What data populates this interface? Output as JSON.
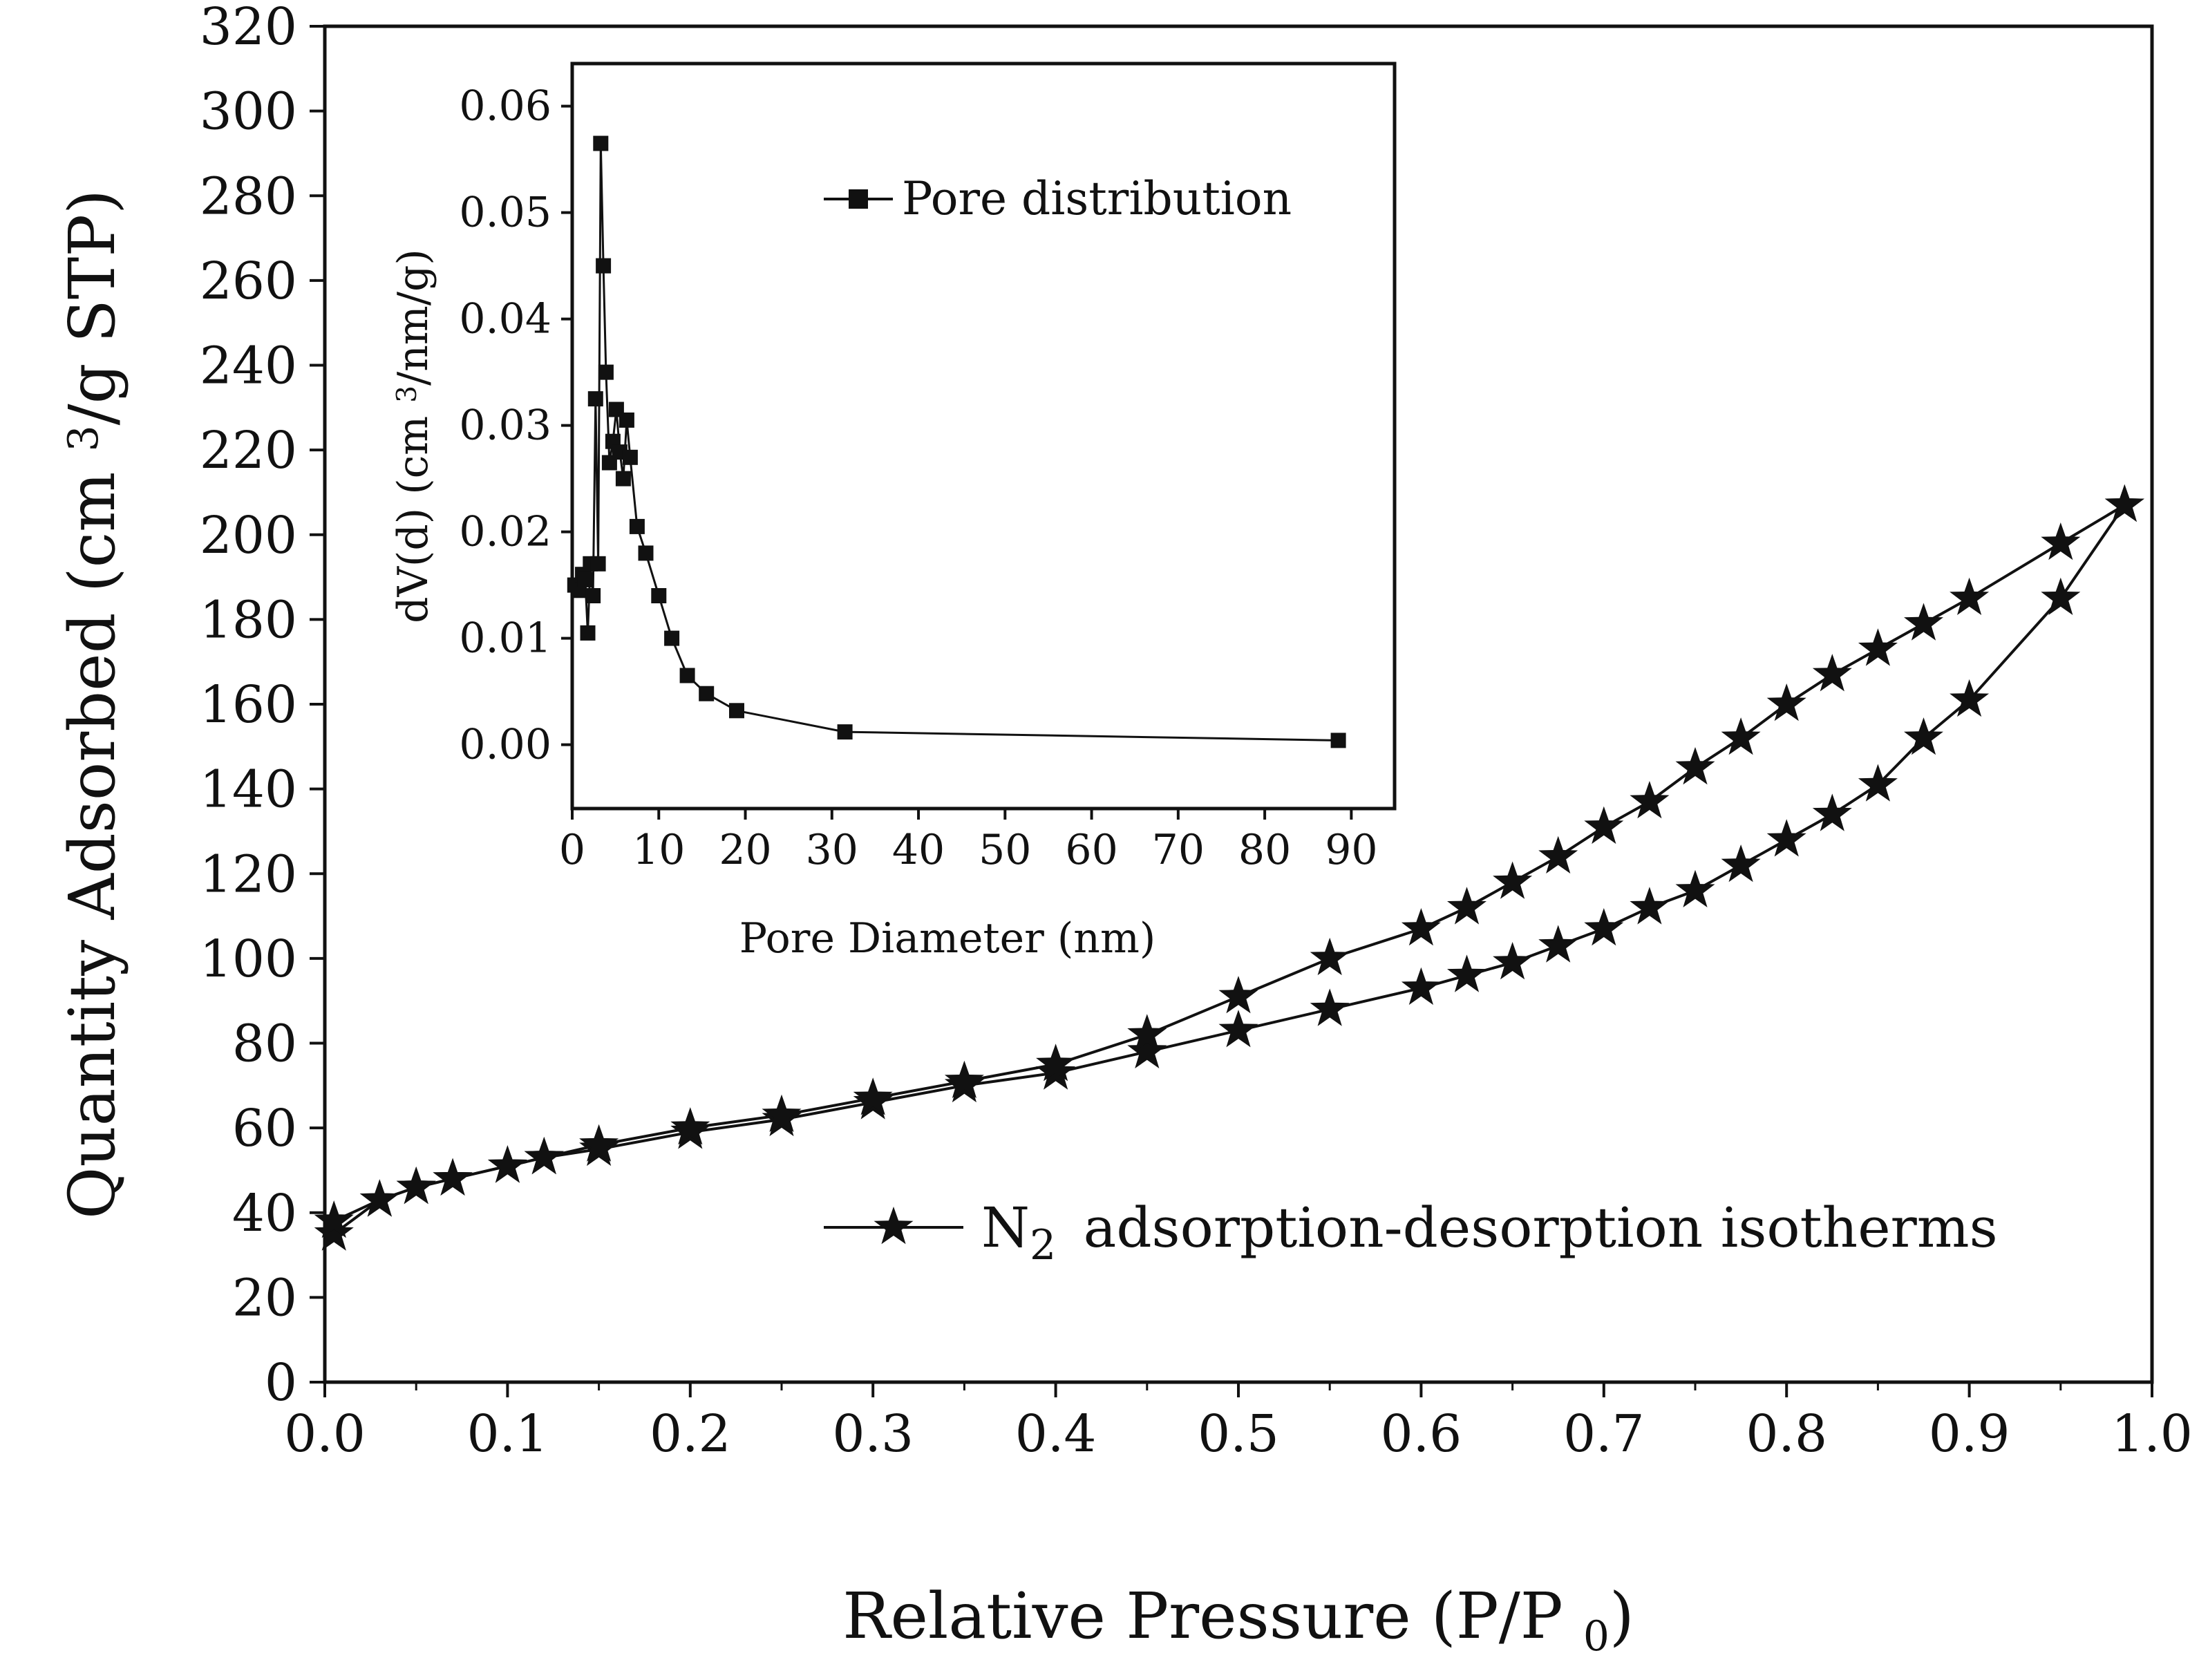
{
  "chart_data": [
    {
      "type": "line",
      "title": "",
      "xlabel": "Relative Pressure (P/P0)",
      "ylabel": "Quantity Adsorbed (cm3/g STP)",
      "xlim": [
        0.0,
        1.0
      ],
      "ylim": [
        0,
        320
      ],
      "xticks": [
        "0.0",
        "0.1",
        "0.2",
        "0.3",
        "0.4",
        "0.5",
        "0.6",
        "0.7",
        "0.8",
        "0.9",
        "1.0"
      ],
      "yticks": [
        "0",
        "20",
        "40",
        "60",
        "80",
        "100",
        "120",
        "140",
        "160",
        "180",
        "200",
        "220",
        "240",
        "260",
        "280",
        "300",
        "320"
      ],
      "legend": {
        "label": "N2 adsorption-desorption isotherms",
        "position": "bottom-right",
        "marker": "star"
      },
      "series": [
        {
          "name": "adsorption",
          "x": [
            0.005,
            0.03,
            0.05,
            0.07,
            0.1,
            0.12,
            0.15,
            0.2,
            0.25,
            0.3,
            0.35,
            0.4,
            0.45,
            0.5,
            0.55,
            0.6,
            0.625,
            0.65,
            0.675,
            0.7,
            0.725,
            0.75,
            0.775,
            0.8,
            0.825,
            0.85,
            0.875,
            0.9,
            0.95,
            0.985
          ],
          "values": [
            35,
            43,
            46,
            48,
            51,
            53,
            55,
            59,
            62,
            66,
            70,
            73,
            78,
            83,
            88,
            93,
            96,
            99,
            103,
            107,
            112,
            116,
            122,
            128,
            134,
            141,
            152,
            161,
            185,
            207
          ]
        },
        {
          "name": "desorption",
          "x": [
            0.985,
            0.95,
            0.9,
            0.875,
            0.85,
            0.825,
            0.8,
            0.775,
            0.75,
            0.725,
            0.7,
            0.675,
            0.65,
            0.625,
            0.6,
            0.55,
            0.5,
            0.45,
            0.4,
            0.35,
            0.3,
            0.25,
            0.2,
            0.15,
            0.12,
            0.1,
            0.07,
            0.05,
            0.03,
            0.005
          ],
          "values": [
            207,
            198,
            185,
            179,
            173,
            167,
            160,
            152,
            145,
            137,
            131,
            124,
            118,
            112,
            107,
            100,
            91,
            82,
            75,
            71,
            67,
            63,
            60,
            56,
            53,
            51,
            48,
            46,
            43,
            38
          ]
        }
      ]
    },
    {
      "type": "line",
      "title": "",
      "xlabel": "Pore Diameter (nm)",
      "ylabel": "dV(d) (cm3/nm/g)",
      "xlim": [
        0,
        95
      ],
      "ylim": [
        -0.006,
        0.064
      ],
      "xticks": [
        "0",
        "10",
        "20",
        "30",
        "40",
        "50",
        "60",
        "70",
        "80",
        "90"
      ],
      "yticks": [
        "0.00",
        "0.01",
        "0.02",
        "0.03",
        "0.04",
        "0.05",
        "0.06"
      ],
      "legend": {
        "label": "Pore distribution",
        "position": "top-right",
        "marker": "square"
      },
      "series": [
        {
          "name": "Pore distribution",
          "x": [
            0.3,
            0.8,
            1.2,
            1.5,
            1.8,
            2.1,
            2.4,
            2.7,
            3.0,
            3.3,
            3.6,
            3.9,
            4.3,
            4.7,
            5.1,
            5.5,
            5.9,
            6.3,
            6.7,
            7.5,
            8.5,
            10.0,
            11.5,
            13.3,
            15.5,
            19.0,
            31.5,
            88.5
          ],
          "values": [
            0.015,
            0.0145,
            0.016,
            0.0155,
            0.0105,
            0.017,
            0.014,
            0.0325,
            0.017,
            0.0565,
            0.045,
            0.035,
            0.0265,
            0.0285,
            0.0315,
            0.0275,
            0.025,
            0.0305,
            0.027,
            0.0205,
            0.018,
            0.014,
            0.01,
            0.0065,
            0.0048,
            0.0032,
            0.0012,
            0.0004
          ]
        }
      ]
    }
  ]
}
